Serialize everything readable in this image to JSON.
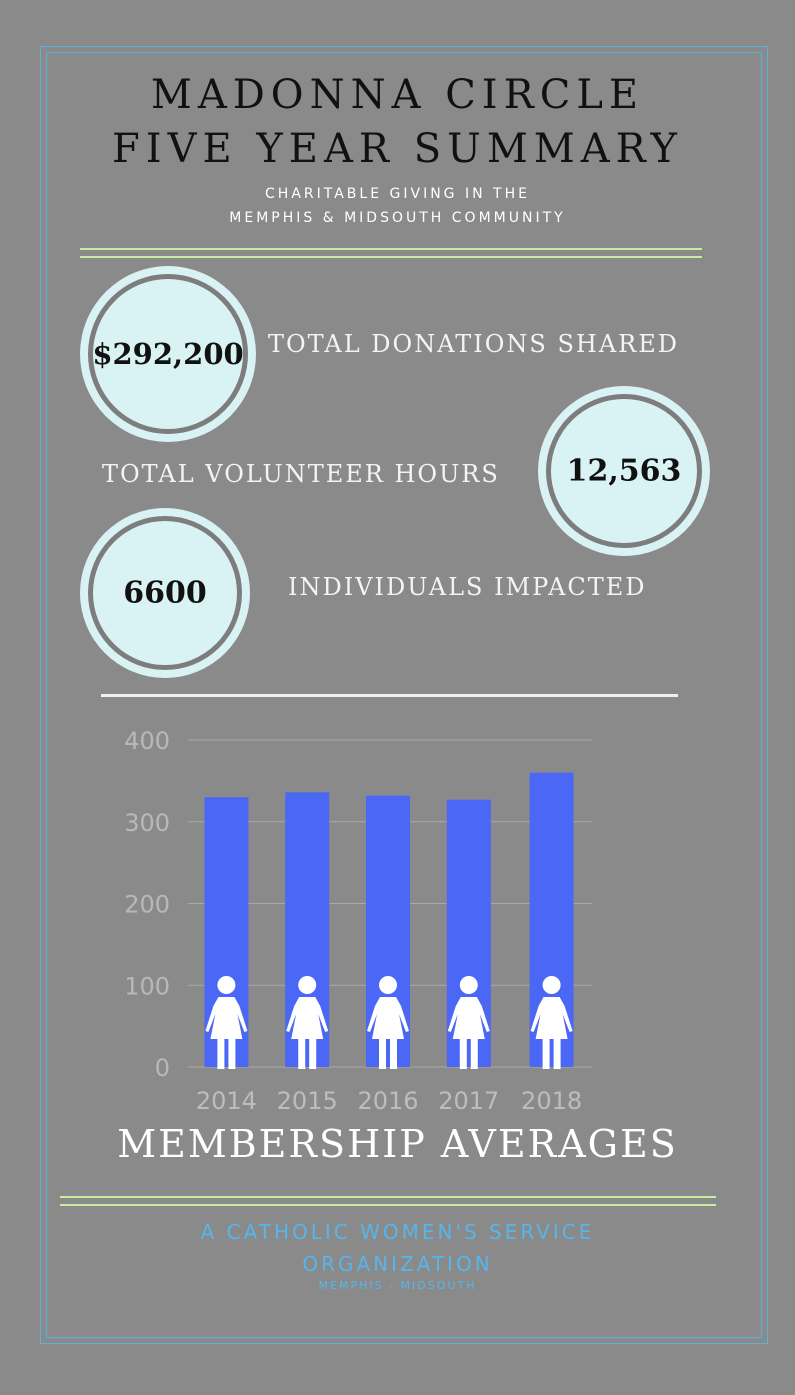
{
  "header": {
    "title_line1": "MADONNA CIRCLE",
    "title_line2": "FIVE YEAR SUMMARY",
    "subtitle_line1": "CHARITABLE GIVING IN THE",
    "subtitle_line2": "MEMPHIS & MIDSOUTH COMMUNITY"
  },
  "stats": {
    "donations": {
      "value": "$292,200",
      "label": "TOTAL DONATIONS SHARED"
    },
    "volunteer": {
      "value": "12,563",
      "label": "TOTAL VOLUNTEER HOURS"
    },
    "individuals": {
      "value": "6600",
      "label": "INDIVIDUALS IMPACTED"
    }
  },
  "chart_data": {
    "type": "bar",
    "title": "MEMBERSHIP AVERAGES",
    "categories": [
      "2014",
      "2015",
      "2016",
      "2017",
      "2018"
    ],
    "values": [
      330,
      336,
      332,
      327,
      360
    ],
    "ylim": [
      0,
      400
    ],
    "yticks": [
      "0",
      "100",
      "200",
      "300",
      "400"
    ],
    "grid": true,
    "bar_color": "#4a68f5",
    "icon": "woman-figure-icon"
  },
  "footer": {
    "line1": "A CATHOLIC WOMEN'S SERVICE",
    "line2": "ORGANIZATION",
    "line3": "MEMPHIS - MIDSOUTH"
  },
  "colors": {
    "background": "#8a8a8a",
    "frame": "#5fb1dc",
    "accent_line": "#c6ec9f",
    "circle_fill": "#d9f3f5",
    "footer_text": "#56b6ea"
  }
}
